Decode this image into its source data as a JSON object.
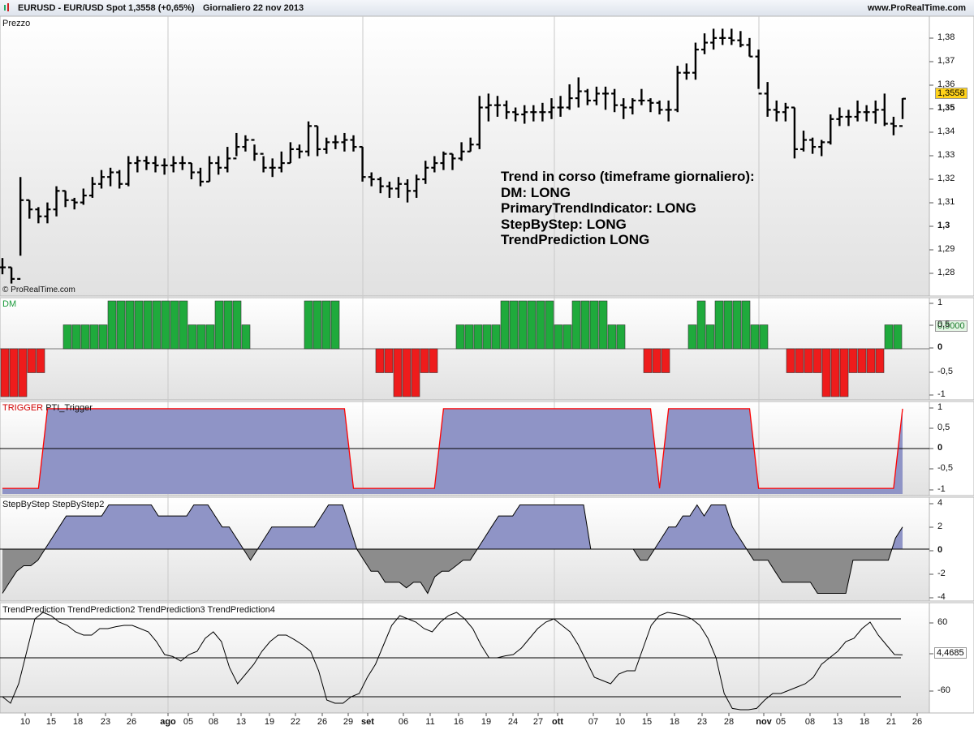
{
  "header": {
    "symbol": "EURUSD - EUR/USD Spot",
    "price_change": "1,3558 (+0,65%)",
    "period_date": "Giornaliero  22 nov 2013",
    "site": "www.ProRealTime.com"
  },
  "panels": {
    "price_title": "Prezzo",
    "copyright": "© ProRealTime.com",
    "dm_title": "DM",
    "trigger_title_a": "TRIGGER",
    "trigger_title_b": "PTI_Trigger",
    "step_title": "StepByStep StepByStep2",
    "trend_title": "TrendPrediction TrendPrediction2 TrendPrediction3 TrendPrediction4"
  },
  "annotation": {
    "l1": "Trend in corso (timeframe giornaliero):",
    "l2": "DM: LONG",
    "l3": "PrimaryTrendIndicator: LONG",
    "l4": "StepByStep: LONG",
    "l5": "TrendPrediction LONG"
  },
  "badges": {
    "price": "1,3558",
    "dm": "0,5000",
    "trend": "4,4685"
  },
  "colors": {
    "bar": "#000000",
    "dm_pos": "#1faa3c",
    "dm_neg": "#ee1c1c",
    "area_fill": "#8f94c6",
    "neg_area_fill": "#8c8c8c",
    "trigger_line": "#ff0000",
    "price_badge_bg": "#ffd21a"
  },
  "chart_data": [
    {
      "type": "ohlc",
      "title": "Prezzo",
      "ylim": [
        1.272,
        1.39
      ],
      "y_ticks": [
        "1,28",
        "1,29",
        "1,3",
        "1,31",
        "1,32",
        "1,33",
        "1,34",
        "1,35",
        "1,36",
        "1,37",
        "1,38"
      ],
      "x_ticks": [
        "10",
        "15",
        "18",
        "23",
        "26",
        "ago",
        "05",
        "08",
        "13",
        "19",
        "22",
        "26",
        "29",
        "set",
        "06",
        "11",
        "16",
        "19",
        "24",
        "27",
        "ott",
        "07",
        "10",
        "15",
        "18",
        "23",
        "28",
        "nov",
        "05",
        "08",
        "13",
        "18",
        "21",
        "26"
      ],
      "close": [
        1.283,
        1.278,
        1.312,
        1.308,
        1.305,
        1.308,
        1.316,
        1.312,
        1.311,
        1.314,
        1.319,
        1.322,
        1.324,
        1.319,
        1.328,
        1.329,
        1.328,
        1.327,
        1.327,
        1.328,
        1.328,
        1.324,
        1.32,
        1.328,
        1.326,
        1.33,
        1.335,
        1.338,
        1.332,
        1.326,
        1.326,
        1.328,
        1.334,
        1.333,
        1.344,
        1.334,
        1.337,
        1.337,
        1.338,
        1.335,
        1.322,
        1.321,
        1.318,
        1.317,
        1.319,
        1.316,
        1.321,
        1.326,
        1.328,
        1.332,
        1.33,
        1.333,
        1.336,
        1.352,
        1.353,
        1.353,
        1.35,
        1.349,
        1.35,
        1.35,
        1.35,
        1.352,
        1.352,
        1.356,
        1.359,
        1.355,
        1.358,
        1.358,
        1.353,
        1.352,
        1.355,
        1.355,
        1.354,
        1.351,
        1.351,
        1.367,
        1.367,
        1.377,
        1.38,
        1.382,
        1.382,
        1.381,
        1.379,
        1.374,
        1.358,
        1.351,
        1.35,
        1.352,
        1.334,
        1.338,
        1.335,
        1.337,
        1.347,
        1.348,
        1.348,
        1.35,
        1.35,
        1.351,
        1.345,
        1.344,
        1.3558
      ],
      "high": [
        1.287,
        1.283,
        1.322,
        1.312,
        1.309,
        1.311,
        1.318,
        1.316,
        1.313,
        1.317,
        1.322,
        1.325,
        1.326,
        1.325,
        1.331,
        1.331,
        1.331,
        1.331,
        1.33,
        1.331,
        1.331,
        1.328,
        1.326,
        1.331,
        1.331,
        1.335,
        1.341,
        1.34,
        1.336,
        1.331,
        1.33,
        1.333,
        1.337,
        1.336,
        1.346,
        1.344,
        1.339,
        1.34,
        1.341,
        1.34,
        1.335,
        1.324,
        1.322,
        1.32,
        1.322,
        1.321,
        1.323,
        1.329,
        1.331,
        1.333,
        1.332,
        1.337,
        1.339,
        1.357,
        1.358,
        1.357,
        1.355,
        1.352,
        1.353,
        1.353,
        1.354,
        1.356,
        1.357,
        1.362,
        1.365,
        1.36,
        1.361,
        1.361,
        1.36,
        1.356,
        1.356,
        1.36,
        1.356,
        1.355,
        1.355,
        1.37,
        1.371,
        1.38,
        1.384,
        1.386,
        1.386,
        1.386,
        1.385,
        1.382,
        1.377,
        1.363,
        1.355,
        1.354,
        1.352,
        1.342,
        1.339,
        1.338,
        1.349,
        1.352,
        1.351,
        1.355,
        1.353,
        1.355,
        1.358,
        1.348,
        1.356
      ],
      "low": [
        1.28,
        1.276,
        1.288,
        1.304,
        1.302,
        1.302,
        1.305,
        1.309,
        1.308,
        1.31,
        1.313,
        1.317,
        1.318,
        1.317,
        1.318,
        1.324,
        1.325,
        1.324,
        1.323,
        1.324,
        1.325,
        1.321,
        1.318,
        1.32,
        1.323,
        1.324,
        1.331,
        1.333,
        1.329,
        1.324,
        1.322,
        1.324,
        1.328,
        1.33,
        1.331,
        1.331,
        1.332,
        1.334,
        1.333,
        1.333,
        1.32,
        1.318,
        1.315,
        1.313,
        1.313,
        1.311,
        1.313,
        1.319,
        1.324,
        1.325,
        1.325,
        1.329,
        1.333,
        1.334,
        1.346,
        1.348,
        1.347,
        1.346,
        1.345,
        1.346,
        1.346,
        1.347,
        1.348,
        1.351,
        1.352,
        1.353,
        1.353,
        1.351,
        1.35,
        1.347,
        1.349,
        1.353,
        1.35,
        1.349,
        1.346,
        1.35,
        1.364,
        1.364,
        1.375,
        1.377,
        1.379,
        1.379,
        1.378,
        1.374,
        1.36,
        1.348,
        1.346,
        1.346,
        1.33,
        1.333,
        1.332,
        1.331,
        1.336,
        1.344,
        1.344,
        1.346,
        1.346,
        1.345,
        1.344,
        1.34,
        1.347
      ]
    },
    {
      "type": "bar",
      "title": "DM",
      "ylim": [
        -1,
        1
      ],
      "y_ticks": [
        "1",
        "0,5",
        "0",
        "-0,5",
        "-1"
      ],
      "values": [
        -1,
        -1,
        -1,
        -0.5,
        -0.5,
        0,
        0,
        0.5,
        0.5,
        0.5,
        0.5,
        0.5,
        1,
        1,
        1,
        1,
        1,
        1,
        1,
        1,
        1,
        0.5,
        0.5,
        0.5,
        1,
        1,
        1,
        0.5,
        0,
        0,
        0,
        0,
        0,
        0,
        1,
        1,
        1,
        1,
        0,
        0,
        0,
        0,
        -0.5,
        -0.5,
        -1,
        -1,
        -1,
        -0.5,
        -0.5,
        0,
        0,
        0.5,
        0.5,
        0.5,
        0.5,
        0.5,
        1,
        1,
        1,
        1,
        1,
        1,
        0.5,
        0.5,
        1,
        1,
        1,
        1,
        0.5,
        0.5,
        0,
        0,
        -0.5,
        -0.5,
        -0.5,
        0,
        0,
        0.5,
        1,
        0.5,
        1,
        1,
        1,
        1,
        0.5,
        0.5,
        0,
        0,
        -0.5,
        -0.5,
        -0.5,
        -0.5,
        -1,
        -1,
        -1,
        -0.5,
        -0.5,
        -0.5,
        -0.5,
        0.5,
        0.5
      ]
    },
    {
      "type": "area",
      "title": "TRIGGER PTI_Trigger",
      "ylim": [
        -1.1,
        1.1
      ],
      "y_ticks": [
        "1",
        "0,5",
        "0",
        "-0,5",
        "-1"
      ],
      "values": [
        -1,
        -1,
        -1,
        -1,
        -1,
        1,
        1,
        1,
        1,
        1,
        1,
        1,
        1,
        1,
        1,
        1,
        1,
        1,
        1,
        1,
        1,
        1,
        1,
        1,
        1,
        1,
        1,
        1,
        1,
        1,
        1,
        1,
        1,
        1,
        1,
        1,
        1,
        1,
        1,
        -1,
        -1,
        -1,
        -1,
        -1,
        -1,
        -1,
        -1,
        -1,
        -1,
        1,
        1,
        1,
        1,
        1,
        1,
        1,
        1,
        1,
        1,
        1,
        1,
        1,
        1,
        1,
        1,
        1,
        1,
        1,
        1,
        1,
        1,
        1,
        1,
        -1,
        1,
        1,
        1,
        1,
        1,
        1,
        1,
        1,
        1,
        1,
        -1,
        -1,
        -1,
        -1,
        -1,
        -1,
        -1,
        -1,
        -1,
        -1,
        -1,
        -1,
        -1,
        -1,
        -1,
        -1,
        1
      ]
    },
    {
      "type": "area",
      "title": "StepByStep StepByStep2",
      "ylim": [
        -4.4,
        4.4
      ],
      "y_ticks": [
        "4",
        "2",
        "0",
        "-2",
        "-4"
      ],
      "values": [
        -4,
        -3,
        -2,
        -1.5,
        -1.5,
        -1,
        0,
        1,
        2,
        3,
        3,
        3,
        3,
        3,
        3,
        4,
        4,
        4,
        4,
        4,
        4,
        4,
        3,
        3,
        3,
        3,
        3,
        4,
        4,
        4,
        3,
        2,
        2,
        1,
        0,
        -1,
        0,
        1,
        2,
        2,
        2,
        2,
        2,
        2,
        2,
        3,
        4,
        4,
        4,
        2,
        0,
        -1,
        -2,
        -2,
        -3,
        -3,
        -3,
        -3.5,
        -3,
        -3,
        -4,
        -2.5,
        -2,
        -2,
        -1.5,
        -1,
        -1,
        0,
        1,
        2,
        3,
        3,
        3,
        4,
        4,
        4,
        4,
        4,
        4,
        4,
        4,
        4,
        4,
        0,
        0,
        0,
        0,
        0,
        0,
        0,
        -1,
        -1,
        0,
        1,
        2,
        2,
        3,
        3,
        4,
        3,
        4,
        4,
        4,
        2,
        1,
        0,
        -1,
        -1,
        -1,
        -2,
        -3,
        -3,
        -3,
        -3,
        -3,
        -4,
        -4,
        -4,
        -4,
        -4,
        -1,
        -1,
        -1,
        -1,
        -1,
        -1,
        1,
        2
      ]
    },
    {
      "type": "line",
      "title": "TrendPrediction TrendPrediction2 TrendPrediction3 TrendPrediction4",
      "ylim": [
        -80,
        80
      ],
      "y_ticks": [
        "60",
        "4,4685",
        "-60"
      ],
      "h_lines": [
        60,
        0,
        -60
      ],
      "values": [
        -60,
        -70,
        -40,
        10,
        60,
        70,
        65,
        55,
        50,
        40,
        35,
        35,
        45,
        45,
        48,
        50,
        50,
        45,
        40,
        25,
        5,
        2,
        -5,
        5,
        10,
        30,
        40,
        25,
        -15,
        -40,
        -25,
        -10,
        10,
        25,
        35,
        35,
        28,
        20,
        10,
        -20,
        -65,
        -70,
        -70,
        -60,
        -55,
        -30,
        -10,
        20,
        50,
        65,
        60,
        55,
        45,
        40,
        55,
        65,
        70,
        60,
        45,
        20,
        0,
        0,
        3,
        5,
        15,
        30,
        45,
        55,
        60,
        50,
        40,
        20,
        -5,
        -30,
        -35,
        -40,
        -25,
        -20,
        -20,
        15,
        50,
        65,
        70,
        68,
        65,
        60,
        50,
        30,
        0,
        -55,
        -78,
        -80,
        -80,
        -78,
        -65,
        -55,
        -55,
        -50,
        -45,
        -40,
        -30,
        -10,
        0,
        10,
        25,
        30,
        45,
        55,
        35,
        20,
        5,
        4.4685
      ]
    }
  ]
}
